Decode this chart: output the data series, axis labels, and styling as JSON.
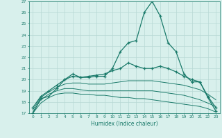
{
  "x": [
    0,
    1,
    2,
    3,
    4,
    5,
    6,
    7,
    8,
    9,
    10,
    11,
    12,
    13,
    14,
    15,
    16,
    17,
    18,
    19,
    20,
    21,
    22,
    23
  ],
  "line_main": [
    17.0,
    18.3,
    18.5,
    19.2,
    20.0,
    20.3,
    20.2,
    20.2,
    20.3,
    20.3,
    21.0,
    22.5,
    23.3,
    23.5,
    26.0,
    27.0,
    25.7,
    23.3,
    22.5,
    20.5,
    19.8,
    19.8,
    18.4,
    17.2
  ],
  "line2": [
    17.5,
    18.5,
    19.0,
    19.5,
    20.0,
    20.5,
    20.2,
    20.3,
    20.4,
    20.5,
    20.8,
    21.0,
    21.5,
    21.2,
    21.0,
    21.0,
    21.2,
    21.0,
    20.7,
    20.3,
    20.0,
    19.8,
    18.5,
    17.5
  ],
  "line3": [
    17.3,
    18.4,
    18.9,
    19.3,
    19.6,
    19.7,
    19.7,
    19.6,
    19.6,
    19.6,
    19.7,
    19.8,
    19.9,
    19.9,
    19.9,
    19.9,
    19.8,
    19.7,
    19.6,
    19.5,
    19.3,
    19.1,
    18.7,
    18.2
  ],
  "line4": [
    17.1,
    18.2,
    18.7,
    19.0,
    19.2,
    19.2,
    19.1,
    19.0,
    19.0,
    19.0,
    19.0,
    19.0,
    19.0,
    19.0,
    19.0,
    19.0,
    18.9,
    18.8,
    18.7,
    18.6,
    18.4,
    18.2,
    17.9,
    17.6
  ],
  "line5": [
    17.0,
    17.9,
    18.4,
    18.7,
    18.8,
    18.8,
    18.7,
    18.7,
    18.6,
    18.6,
    18.5,
    18.4,
    18.4,
    18.3,
    18.3,
    18.2,
    18.1,
    18.0,
    17.9,
    17.8,
    17.7,
    17.6,
    17.4,
    17.1
  ],
  "color": "#1a7a6a",
  "bg_color": "#d8f0ec",
  "grid_color": "#b8d8d4",
  "xlabel": "Humidex (Indice chaleur)",
  "ylabel_min": 17,
  "ylabel_max": 27,
  "marker": "+",
  "marker_size": 3,
  "lw_main": 0.9,
  "lw_other": 0.7
}
